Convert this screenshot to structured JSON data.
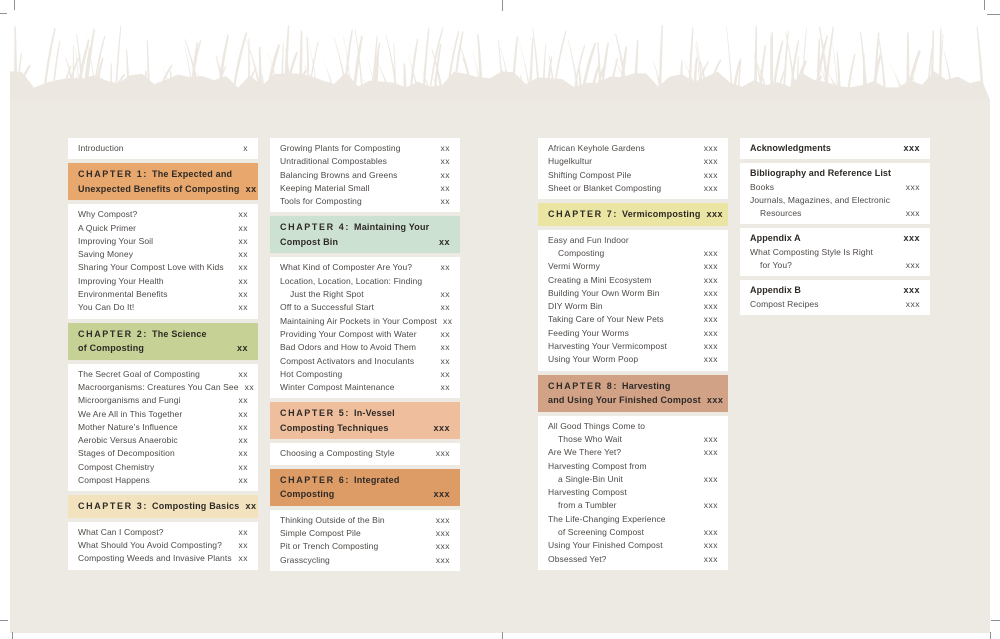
{
  "document_type": "table-of-contents-spread",
  "colors": {
    "page_background": "#EDE9E3",
    "card_background": "#FFFFFF",
    "grass_silhouette": "#ECE7E0",
    "crop_mark": "#8F9193",
    "entry_text": "#4E4A47",
    "heading_text": "#2E2A27"
  },
  "toc": {
    "columns": [
      {
        "sections": [
          {
            "kind": "card",
            "rows": [
              {
                "t": "Introduction",
                "p": "x"
              }
            ]
          },
          {
            "kind": "chapter",
            "bg": "#E8A76C",
            "prefix": "CHAPTER 1:",
            "lines": [
              "The Expected and",
              "Unexpected Benefits of Composting"
            ],
            "page": "xx"
          },
          {
            "kind": "card",
            "rows": [
              {
                "t": "Why Compost?",
                "p": "xx"
              },
              {
                "t": "A Quick Primer",
                "p": "xx"
              },
              {
                "t": "Improving Your Soil",
                "p": "xx"
              },
              {
                "t": "Saving Money",
                "p": "xx"
              },
              {
                "t": "Sharing Your Compost Love with Kids",
                "p": "xx"
              },
              {
                "t": "Improving Your Health",
                "p": "xx"
              },
              {
                "t": "Environmental Benefits",
                "p": "xx"
              },
              {
                "t": "You Can Do It!",
                "p": "xx"
              }
            ]
          },
          {
            "kind": "chapter",
            "bg": "#C6D295",
            "prefix": "CHAPTER 2:",
            "lines": [
              "The Science",
              "of Composting"
            ],
            "page": "xx"
          },
          {
            "kind": "card",
            "rows": [
              {
                "t": "The Secret Goal of Composting",
                "p": "xx"
              },
              {
                "t": "Macroorganisms: Creatures You Can See",
                "p": "xx"
              },
              {
                "t": "Microorganisms and Fungi",
                "p": "xx"
              },
              {
                "t": "We Are All in This Together",
                "p": "xx"
              },
              {
                "t": "Mother Nature’s Influence",
                "p": "xx"
              },
              {
                "t": "Aerobic Versus Anaerobic",
                "p": "xx"
              },
              {
                "t": "Stages of Decomposition",
                "p": "xx"
              },
              {
                "t": "Compost Chemistry",
                "p": "xx"
              },
              {
                "t": "Compost Happens",
                "p": "xx"
              }
            ]
          },
          {
            "kind": "chapter",
            "bg": "#F2E3BE",
            "prefix": "CHAPTER 3:",
            "lines": [
              "Composting Basics"
            ],
            "page": "xx"
          },
          {
            "kind": "card",
            "rows": [
              {
                "t": "What Can I Compost?",
                "p": "xx"
              },
              {
                "t": "What Should You Avoid Composting?",
                "p": "xx"
              },
              {
                "t": "Composting Weeds and Invasive Plants",
                "p": "xx"
              }
            ]
          }
        ]
      },
      {
        "sections": [
          {
            "kind": "card",
            "rows": [
              {
                "t": "Growing Plants for Composting",
                "p": "xx"
              },
              {
                "t": "Untraditional Compostables",
                "p": "xx"
              },
              {
                "t": "Balancing Browns and Greens",
                "p": "xx"
              },
              {
                "t": "Keeping Material Small",
                "p": "xx"
              },
              {
                "t": "Tools for Composting",
                "p": "xx"
              }
            ]
          },
          {
            "kind": "chapter",
            "bg": "#CDE1D2",
            "prefix": "CHAPTER 4:",
            "lines": [
              "Maintaining Your",
              "Compost Bin"
            ],
            "page": "xx"
          },
          {
            "kind": "card",
            "rows": [
              {
                "t": "What Kind of Composter Are You?",
                "p": "xx"
              },
              {
                "t": "Location, Location, Location: Finding",
                "p": ""
              },
              {
                "t": "Just the Right Spot",
                "p": "xx",
                "indent": true
              },
              {
                "t": "Off to a Successful Start",
                "p": "xx"
              },
              {
                "t": "Maintaining Air Pockets in Your Compost",
                "p": "xx"
              },
              {
                "t": "Providing Your Compost with Water",
                "p": "xx"
              },
              {
                "t": "Bad Odors and How to Avoid Them",
                "p": "xx"
              },
              {
                "t": "Compost Activators and Inoculants",
                "p": "xx"
              },
              {
                "t": "Hot Composting",
                "p": "xx"
              },
              {
                "t": "Winter Compost Maintenance",
                "p": "xx"
              }
            ]
          },
          {
            "kind": "chapter",
            "bg": "#EFBE9C",
            "prefix": "CHAPTER 5:",
            "lines": [
              "In-Vessel",
              "Composting Techniques"
            ],
            "page": "xxx"
          },
          {
            "kind": "card",
            "rows": [
              {
                "t": "Choosing a Composting Style",
                "p": "xxx"
              }
            ]
          },
          {
            "kind": "chapter",
            "bg": "#DD9B66",
            "prefix": "CHAPTER 6:",
            "lines": [
              "Integrated",
              "Composting"
            ],
            "page": "xxx"
          },
          {
            "kind": "card",
            "rows": [
              {
                "t": "Thinking Outside of the Bin",
                "p": "xxx"
              },
              {
                "t": "Simple Compost Pile",
                "p": "xxx"
              },
              {
                "t": "Pit or Trench Composting",
                "p": "xxx"
              },
              {
                "t": "Grasscycling",
                "p": "xxx"
              }
            ]
          }
        ]
      },
      {
        "sections": [
          {
            "kind": "card",
            "rows": [
              {
                "t": "African Keyhole Gardens",
                "p": "xxx"
              },
              {
                "t": "Hugelkultur",
                "p": "xxx"
              },
              {
                "t": "Shifting Compost Pile",
                "p": "xxx"
              },
              {
                "t": "Sheet or Blanket Composting",
                "p": "xxx"
              }
            ]
          },
          {
            "kind": "chapter",
            "bg": "#EAE5A2",
            "prefix": "CHAPTER 7:",
            "lines": [
              "Vermicomposting"
            ],
            "page": "xxx"
          },
          {
            "kind": "card",
            "rows": [
              {
                "t": "Easy and Fun Indoor",
                "p": ""
              },
              {
                "t": "Composting",
                "p": "xxx",
                "indent": true
              },
              {
                "t": "Vermi Wormy",
                "p": "xxx"
              },
              {
                "t": "Creating a Mini Ecosystem",
                "p": "xxx"
              },
              {
                "t": "Building Your Own Worm Bin",
                "p": "xxx"
              },
              {
                "t": "DIY Worm Bin",
                "p": "xxx"
              },
              {
                "t": "Taking Care of Your New Pets",
                "p": "xxx"
              },
              {
                "t": "Feeding Your Worms",
                "p": "xxx"
              },
              {
                "t": "Harvesting Your Vermicompost",
                "p": "xxx"
              },
              {
                "t": "Using Your Worm Poop",
                "p": "xxx"
              }
            ]
          },
          {
            "kind": "chapter",
            "bg": "#D1A286",
            "prefix": "CHAPTER 8:",
            "lines": [
              "Harvesting",
              "and Using Your Finished Compost"
            ],
            "page": "xxx"
          },
          {
            "kind": "card",
            "rows": [
              {
                "t": "All Good Things Come to",
                "p": ""
              },
              {
                "t": "Those Who Wait",
                "p": "xxx",
                "indent": true
              },
              {
                "t": "Are We There Yet?",
                "p": "xxx"
              },
              {
                "t": "Harvesting Compost from",
                "p": ""
              },
              {
                "t": "a Single-Bin Unit",
                "p": "xxx",
                "indent": true
              },
              {
                "t": "Harvesting Compost",
                "p": ""
              },
              {
                "t": "from a Tumbler",
                "p": "xxx",
                "indent": true
              },
              {
                "t": "The Life-Changing Experience",
                "p": ""
              },
              {
                "t": "of Screening Compost",
                "p": "xxx",
                "indent": true
              },
              {
                "t": "Using Your Finished Compost",
                "p": "xxx"
              },
              {
                "t": "Obsessed Yet?",
                "p": "xxx"
              }
            ]
          }
        ]
      },
      {
        "sections": [
          {
            "kind": "card",
            "rows": [
              {
                "t": "Acknowledgments",
                "p": "xxx",
                "bold": true
              }
            ]
          },
          {
            "kind": "card",
            "rows": [
              {
                "t": "Bibliography and Reference List",
                "p": "",
                "bold": true
              },
              {
                "t": "Books",
                "p": "xxx"
              },
              {
                "t": "Journals, Magazines, and Electronic",
                "p": ""
              },
              {
                "t": "Resources",
                "p": "xxx",
                "indent": true
              }
            ]
          },
          {
            "kind": "card",
            "rows": [
              {
                "t": "Appendix A",
                "p": "xxx",
                "bold": true
              },
              {
                "t": "What Composting Style Is Right",
                "p": ""
              },
              {
                "t": "for You?",
                "p": "xxx",
                "indent": true
              }
            ]
          },
          {
            "kind": "card",
            "rows": [
              {
                "t": "Appendix B",
                "p": "xxx",
                "bold": true
              },
              {
                "t": "Compost Recipes",
                "p": "xxx"
              }
            ]
          }
        ]
      }
    ]
  }
}
